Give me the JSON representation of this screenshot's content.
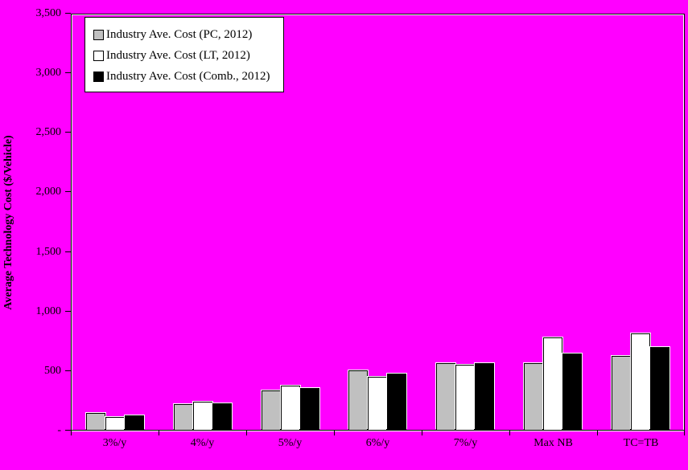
{
  "chart_data": {
    "type": "bar",
    "title": "",
    "xlabel": "",
    "ylabel": "Average Technology Cost ($/Vehicle)",
    "categories": [
      "3%/y",
      "4%/y",
      "5%/y",
      "6%/y",
      "7%/y",
      "Max NB",
      "TC=TB"
    ],
    "series": [
      {
        "name": "Industry Ave. Cost  (PC, 2012)",
        "color": "#c0c0c0",
        "values": [
          140,
          215,
          330,
          500,
          560,
          565,
          625
        ]
      },
      {
        "name": "Industry Ave. Cost  (LT, 2012)",
        "color": "#ffffff",
        "values": [
          110,
          235,
          370,
          450,
          550,
          780,
          810
        ]
      },
      {
        "name": "Industry Ave. Cost  (Comb., 2012)",
        "color": "#000000",
        "values": [
          125,
          225,
          350,
          475,
          560,
          645,
          695
        ]
      }
    ],
    "ylim": [
      0,
      3500
    ],
    "ytick_step": 500,
    "ytick_labels": [
      "-",
      "500",
      "1,000",
      "1,500",
      "2,000",
      "2,500",
      "3,000",
      "3,500"
    ],
    "legend_position": "top-left-inside",
    "grid": false,
    "plot_background": "#ff00ff",
    "page_background": "#ff00ff",
    "axis_color": "#000000",
    "highlight_color": "#ffffff",
    "legend_background": "#ffffff"
  }
}
